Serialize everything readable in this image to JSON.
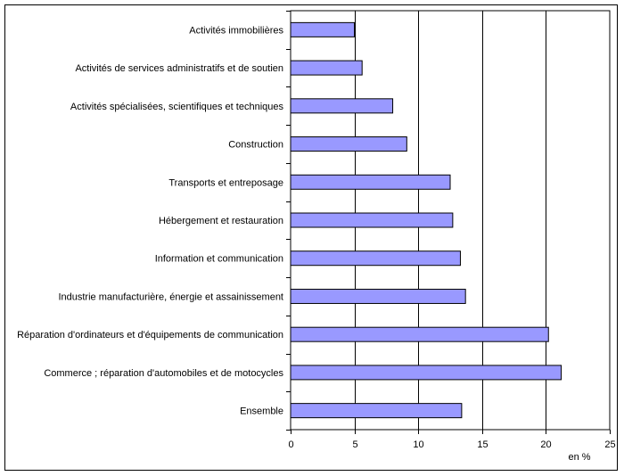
{
  "chart_data": {
    "type": "bar",
    "orientation": "horizontal",
    "categories": [
      "Activités immobilières",
      "Activités de services administratifs et de soutien",
      "Activités spécialisées, scientifiques et techniques",
      "Construction",
      "Transports et entreposage",
      "Hébergement et restauration",
      "Information et communication",
      "Industrie manufacturière, énergie et assainissement",
      "Réparation d'ordinateurs et d'équipements de communication",
      "Commerce ; réparation d'automobiles et de motocycles",
      "Ensemble"
    ],
    "values": [
      5.0,
      5.6,
      8.0,
      9.1,
      12.5,
      12.7,
      13.3,
      13.7,
      20.2,
      21.2,
      13.4
    ],
    "x_ticks": [
      0,
      5,
      10,
      15,
      20,
      25
    ],
    "xlim": [
      0,
      25
    ],
    "xlabel": "en %",
    "title": "",
    "grid": "vertical",
    "bar_color": "#9999ff",
    "bar_border_color": "#000000",
    "legend": "none"
  }
}
